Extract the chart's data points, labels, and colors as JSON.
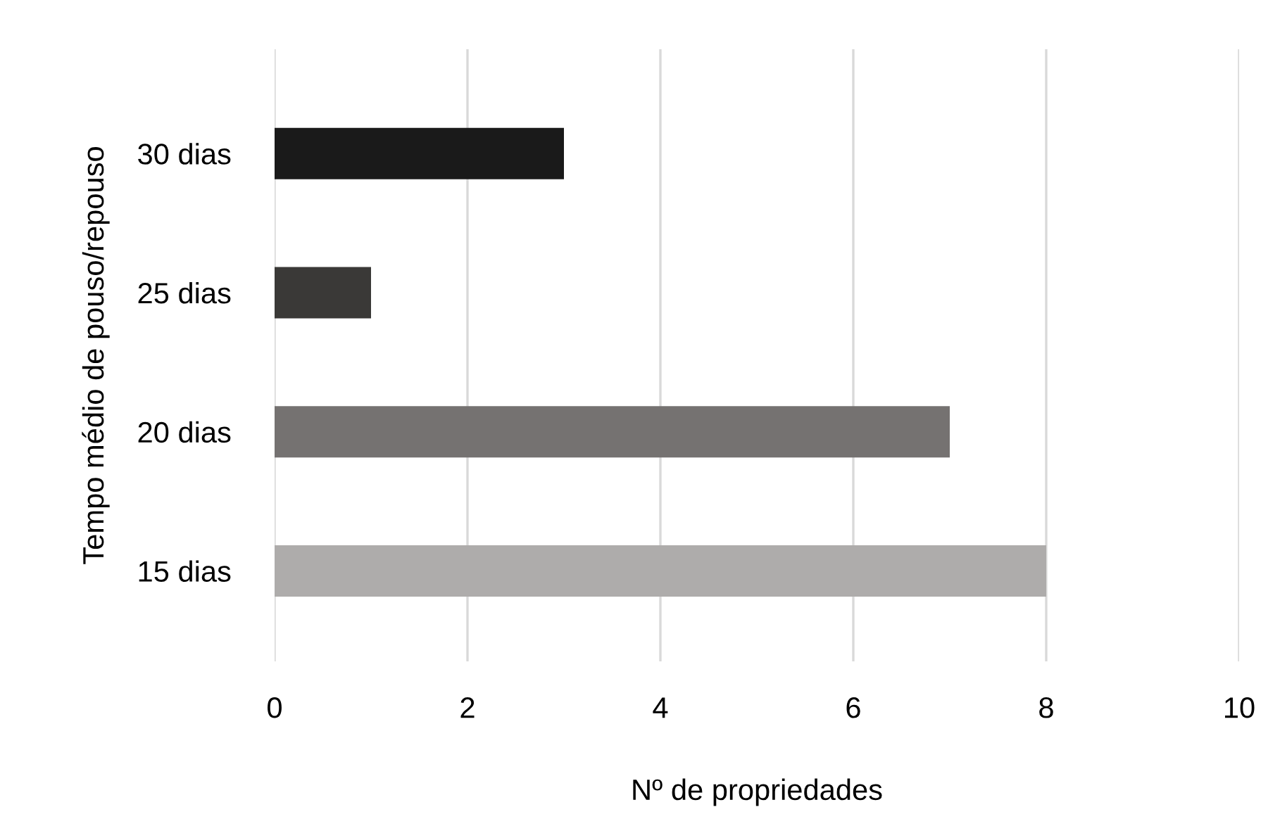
{
  "chart_data": {
    "type": "bar",
    "orientation": "horizontal",
    "categories": [
      "30 dias",
      "25 dias",
      "20 dias",
      "15 dias"
    ],
    "values": [
      3,
      1,
      7,
      8
    ],
    "colors": [
      "#1a1a1a",
      "#3a3937",
      "#757271",
      "#aeacab"
    ],
    "xlabel": "Nº de propriedades",
    "ylabel": "Tempo médio de pouso/repouso",
    "xlim": [
      0,
      10
    ],
    "xticks": [
      0,
      2,
      4,
      6,
      8,
      10
    ],
    "grid": "x",
    "legend": false
  }
}
